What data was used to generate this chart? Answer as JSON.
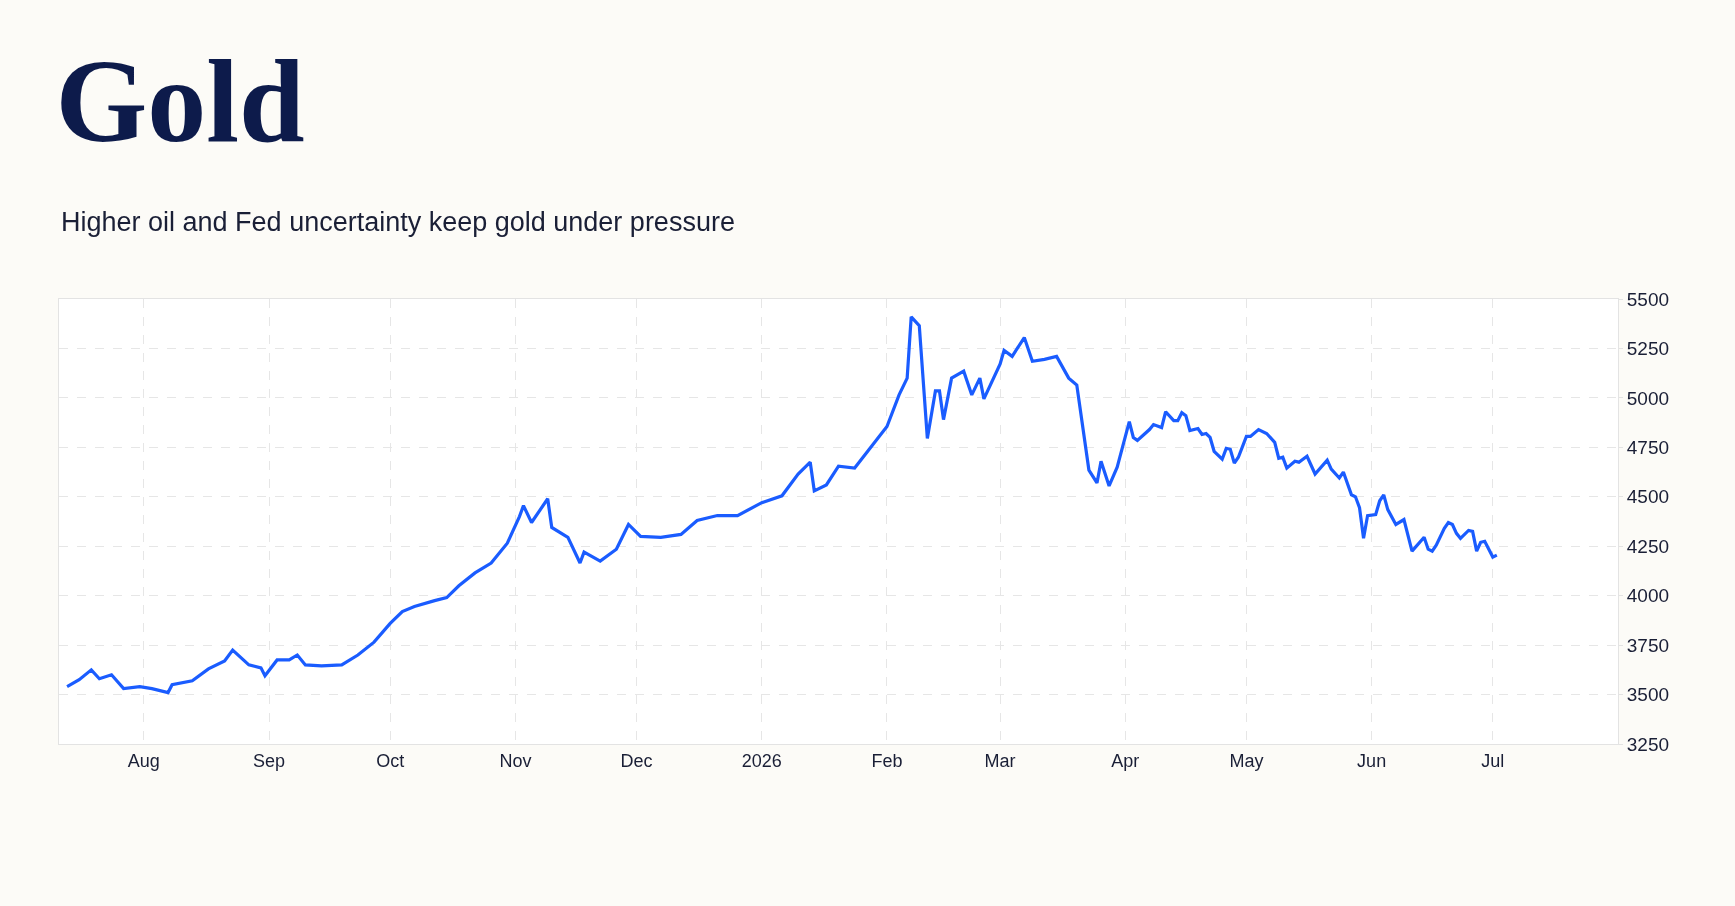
{
  "chart_data": {
    "type": "line",
    "title": "Gold",
    "subtitle": "Higher oil and Fed uncertainty keep gold under pressure",
    "x": [
      "2025-07-13",
      "2025-07-16",
      "2025-07-19",
      "2025-07-21",
      "2025-07-24",
      "2025-07-27",
      "2025-07-31",
      "2025-08-03",
      "2025-08-07",
      "2025-08-08",
      "2025-08-13",
      "2025-08-17",
      "2025-08-21",
      "2025-08-23",
      "2025-08-27",
      "2025-08-30",
      "2025-08-31",
      "2025-09-03",
      "2025-09-06",
      "2025-09-08",
      "2025-09-10",
      "2025-09-14",
      "2025-09-19",
      "2025-09-23",
      "2025-09-27",
      "2025-10-01",
      "2025-10-04",
      "2025-10-07",
      "2025-10-12",
      "2025-10-15",
      "2025-10-18",
      "2025-10-22",
      "2025-10-26",
      "2025-10-30",
      "2025-11-02",
      "2025-11-03",
      "2025-11-05",
      "2025-11-09",
      "2025-11-10",
      "2025-11-14",
      "2025-11-17",
      "2025-11-18",
      "2025-11-22",
      "2025-11-26",
      "2025-11-29",
      "2025-12-02",
      "2025-12-07",
      "2025-12-12",
      "2025-12-16",
      "2025-12-21",
      "2025-12-26",
      "2026-01-01",
      "2026-01-06",
      "2026-01-10",
      "2026-01-13",
      "2026-01-14",
      "2026-01-17",
      "2026-01-20",
      "2026-01-24",
      "2026-01-28",
      "2026-02-01",
      "2026-02-04",
      "2026-02-06",
      "2026-02-07",
      "2026-02-09",
      "2026-02-11",
      "2026-02-13",
      "2026-02-14",
      "2026-02-15",
      "2026-02-17",
      "2026-02-20",
      "2026-02-22",
      "2026-02-24",
      "2026-02-25",
      "2026-03-01",
      "2026-03-02",
      "2026-03-04",
      "2026-03-07",
      "2026-03-09",
      "2026-03-12",
      "2026-03-15",
      "2026-03-18",
      "2026-03-20",
      "2026-03-23",
      "2026-03-25",
      "2026-03-26",
      "2026-03-28",
      "2026-03-30",
      "2026-04-02",
      "2026-04-03",
      "2026-04-04",
      "2026-04-07",
      "2026-04-08",
      "2026-04-10",
      "2026-04-11",
      "2026-04-13",
      "2026-04-14",
      "2026-04-15",
      "2026-04-16",
      "2026-04-17",
      "2026-04-19",
      "2026-04-20",
      "2026-04-21",
      "2026-04-22",
      "2026-04-23",
      "2026-04-25",
      "2026-04-26",
      "2026-04-27",
      "2026-04-28",
      "2026-04-29",
      "2026-05-01",
      "2026-05-02",
      "2026-05-04",
      "2026-05-06",
      "2026-05-08",
      "2026-05-09",
      "2026-05-10",
      "2026-05-11",
      "2026-05-13",
      "2026-05-14",
      "2026-05-16",
      "2026-05-18",
      "2026-05-21",
      "2026-05-22",
      "2026-05-24",
      "2026-05-25",
      "2026-05-27",
      "2026-05-28",
      "2026-05-29",
      "2026-05-30",
      "2026-05-31",
      "2026-06-02",
      "2026-06-03",
      "2026-06-04",
      "2026-06-05",
      "2026-06-07",
      "2026-06-09",
      "2026-06-11",
      "2026-06-14",
      "2026-06-15",
      "2026-06-16",
      "2026-06-17",
      "2026-06-19",
      "2026-06-20",
      "2026-06-21",
      "2026-06-22",
      "2026-06-23",
      "2026-06-25",
      "2026-06-26",
      "2026-06-27",
      "2026-06-28",
      "2026-06-29",
      "2026-07-01",
      "2026-07-02"
    ],
    "series": [
      {
        "color": "#1a5cff",
        "values": [
          3540,
          3575,
          3625,
          3580,
          3600,
          3530,
          3540,
          3530,
          3510,
          3550,
          3570,
          3630,
          3670,
          3725,
          3650,
          3635,
          3595,
          3675,
          3675,
          3700,
          3650,
          3645,
          3650,
          3700,
          3765,
          3860,
          3920,
          3945,
          3975,
          3990,
          4050,
          4115,
          4165,
          4265,
          4400,
          4455,
          4370,
          4490,
          4345,
          4295,
          4165,
          4220,
          4175,
          4235,
          4360,
          4300,
          4295,
          4310,
          4380,
          4405,
          4405,
          4470,
          4505,
          4615,
          4675,
          4530,
          4560,
          4655,
          4645,
          4750,
          4855,
          5015,
          5100,
          5410,
          5365,
          4795,
          5035,
          5035,
          4890,
          5100,
          5135,
          5015,
          5100,
          4995,
          5170,
          5240,
          5210,
          5305,
          5185,
          5195,
          5210,
          5100,
          5065,
          4635,
          4570,
          4680,
          4555,
          4650,
          4880,
          4800,
          4785,
          4840,
          4865,
          4850,
          4930,
          4885,
          4885,
          4925,
          4910,
          4835,
          4845,
          4815,
          4820,
          4800,
          4730,
          4690,
          4745,
          4740,
          4670,
          4700,
          4805,
          4805,
          4840,
          4820,
          4775,
          4695,
          4700,
          4645,
          4680,
          4675,
          4705,
          4615,
          4685,
          4640,
          4595,
          4625,
          4510,
          4500,
          4445,
          4290,
          4405,
          4410,
          4480,
          4510,
          4435,
          4360,
          4385,
          4225,
          4295,
          4235,
          4225,
          4255,
          4340,
          4370,
          4360,
          4315,
          4290,
          4330,
          4325,
          4225,
          4270,
          4275,
          4195,
          4205
        ]
      }
    ],
    "xlim": [
      "2025-07-11",
      "2026-08-01"
    ],
    "xticks": [
      {
        "value": "2025-08-01",
        "label": "Aug"
      },
      {
        "value": "2025-09-01",
        "label": "Sep"
      },
      {
        "value": "2025-10-01",
        "label": "Oct"
      },
      {
        "value": "2025-11-01",
        "label": "Nov"
      },
      {
        "value": "2025-12-01",
        "label": "Dec"
      },
      {
        "value": "2026-01-01",
        "label": "2026"
      },
      {
        "value": "2026-02-01",
        "label": "Feb"
      },
      {
        "value": "2026-03-01",
        "label": "Mar"
      },
      {
        "value": "2026-04-01",
        "label": "Apr"
      },
      {
        "value": "2026-05-01",
        "label": "May"
      },
      {
        "value": "2026-06-01",
        "label": "Jun"
      },
      {
        "value": "2026-07-01",
        "label": "Jul"
      }
    ],
    "ylim": [
      3250,
      5500
    ],
    "yticks": [
      3250,
      3500,
      3750,
      4000,
      4250,
      4500,
      4750,
      5000,
      5250,
      5500
    ],
    "grid": true,
    "marker": "none",
    "line_style": "solid"
  }
}
